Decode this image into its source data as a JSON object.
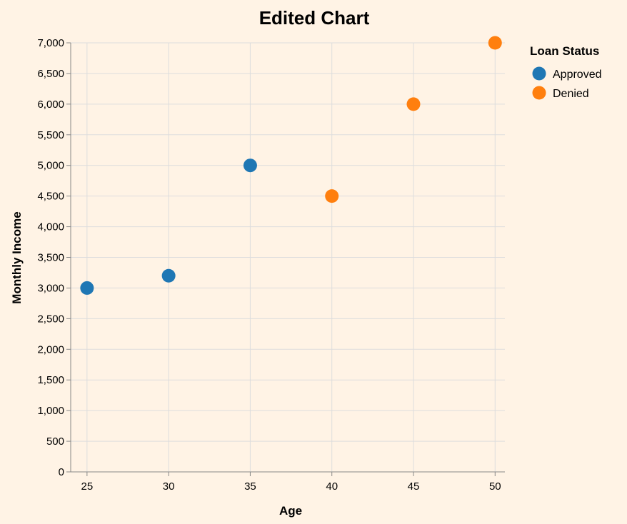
{
  "chart_data": {
    "type": "scatter",
    "title": "Edited Chart",
    "xlabel": "Age",
    "ylabel": "Monthly Income",
    "xlim": [
      24,
      50.6
    ],
    "ylim": [
      0,
      7000
    ],
    "x_ticks": [
      25,
      30,
      35,
      40,
      45,
      50
    ],
    "y_ticks": [
      0,
      500,
      1000,
      1500,
      2000,
      2500,
      3000,
      3500,
      4000,
      4500,
      5000,
      5500,
      6000,
      6500,
      7000
    ],
    "grid": true,
    "legend": {
      "title": "Loan Status",
      "placement": "right"
    },
    "series": [
      {
        "name": "Approved",
        "color": "#1f77b4",
        "points": [
          {
            "x": 25,
            "y": 3000
          },
          {
            "x": 30,
            "y": 3200
          },
          {
            "x": 35,
            "y": 5000
          }
        ]
      },
      {
        "name": "Denied",
        "color": "#ff7f0e",
        "points": [
          {
            "x": 40,
            "y": 4500
          },
          {
            "x": 45,
            "y": 6000
          },
          {
            "x": 50,
            "y": 7000
          }
        ]
      }
    ]
  }
}
